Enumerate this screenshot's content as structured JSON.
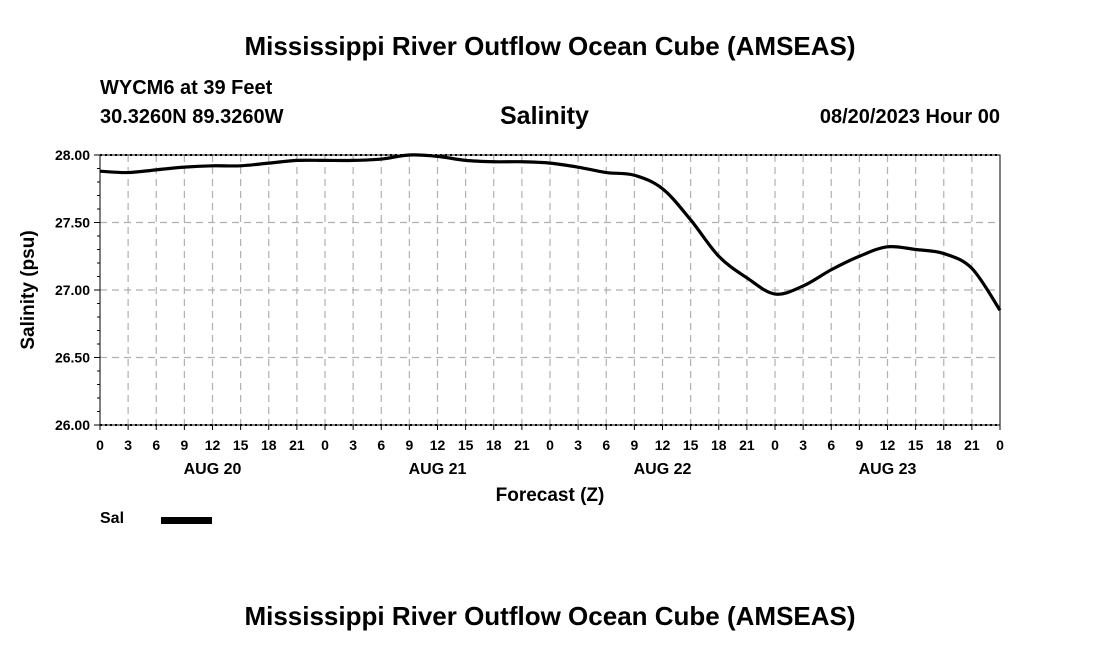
{
  "header": {
    "title": "Mississippi River Outflow Ocean Cube (AMSEAS)",
    "station": "WYCM6 at 39 Feet",
    "coords": "30.3260N  89.3260W",
    "variable": "Salinity",
    "datetime": "08/20/2023 Hour 00"
  },
  "footer": {
    "title": "Mississippi River Outflow Ocean Cube (AMSEAS)"
  },
  "legend": {
    "label": "Sal"
  },
  "chart_data": {
    "type": "line",
    "title": "Salinity",
    "xlabel": "Forecast (Z)",
    "ylabel": "Salinity (psu)",
    "ylim": [
      26.0,
      28.0
    ],
    "xlim_hours": [
      0,
      96
    ],
    "grid": true,
    "y_ticks": [
      "26.00",
      "26.50",
      "27.00",
      "27.50",
      "28.00"
    ],
    "y_tick_values": [
      26.0,
      26.5,
      27.0,
      27.5,
      28.0
    ],
    "x_tick_labels": [
      "0",
      "3",
      "6",
      "9",
      "12",
      "15",
      "18",
      "21",
      "0",
      "3",
      "6",
      "9",
      "12",
      "15",
      "18",
      "21",
      "0",
      "3",
      "6",
      "9",
      "12",
      "15",
      "18",
      "21",
      "0",
      "3",
      "6",
      "9",
      "12",
      "15",
      "18",
      "21",
      "0"
    ],
    "day_labels": [
      {
        "label": "AUG 20",
        "hour": 12
      },
      {
        "label": "AUG 21",
        "hour": 36
      },
      {
        "label": "AUG 22",
        "hour": 60
      },
      {
        "label": "AUG 23",
        "hour": 84
      }
    ],
    "series": [
      {
        "name": "Sal",
        "x": [
          0,
          3,
          6,
          9,
          12,
          15,
          18,
          21,
          24,
          27,
          30,
          33,
          36,
          39,
          42,
          45,
          48,
          51,
          54,
          57,
          60,
          63,
          66,
          69,
          72,
          75,
          78,
          81,
          84,
          87,
          90,
          93,
          96
        ],
        "values": [
          27.88,
          27.87,
          27.89,
          27.91,
          27.92,
          27.92,
          27.94,
          27.96,
          27.96,
          27.96,
          27.97,
          28.0,
          27.99,
          27.96,
          27.95,
          27.95,
          27.94,
          27.91,
          27.87,
          27.85,
          27.75,
          27.52,
          27.25,
          27.09,
          26.97,
          27.03,
          27.15,
          27.25,
          27.32,
          27.3,
          27.27,
          27.16,
          26.85
        ]
      }
    ]
  }
}
